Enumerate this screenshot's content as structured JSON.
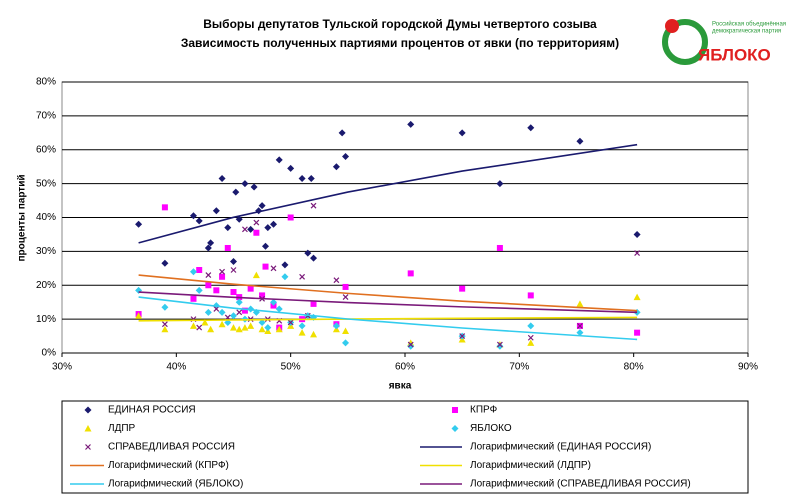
{
  "logo": {
    "name": "ЯБЛОКО",
    "tagline": [
      "Российская объединённая",
      "демократическая партия"
    ]
  },
  "chart_data": {
    "type": "scatter",
    "title": [
      "Выборы депутатов Тульской городской Думы четвертого созыва",
      "Зависимость полученных партиями процентов от явки (по территориям)"
    ],
    "xlabel": "явка",
    "ylabel": "проценты партий",
    "xlim": [
      30,
      90
    ],
    "xticks": [
      {
        "value": 30,
        "label": "30%"
      },
      {
        "value": 40,
        "label": "40%"
      },
      {
        "value": 50,
        "label": "50%"
      },
      {
        "value": 60,
        "label": "60%"
      },
      {
        "value": 70,
        "label": "70%"
      },
      {
        "value": 80,
        "label": "80%"
      },
      {
        "value": 90,
        "label": "90%"
      }
    ],
    "ylim": [
      0,
      80
    ],
    "yticks": [
      {
        "value": 0,
        "label": "0%"
      },
      {
        "value": 10,
        "label": "10%"
      },
      {
        "value": 20,
        "label": "20%"
      },
      {
        "value": 30,
        "label": "30%"
      },
      {
        "value": 40,
        "label": "40%"
      },
      {
        "value": 50,
        "label": "50%"
      },
      {
        "value": 60,
        "label": "60%"
      },
      {
        "value": 70,
        "label": "70%"
      },
      {
        "value": 80,
        "label": "80%"
      }
    ],
    "grid": true,
    "legend": "bottom",
    "series": [
      {
        "name": "ЕДИНАЯ РОССИЯ",
        "color": "#1a1a6e",
        "marker": "diamond",
        "x": [
          36.7,
          39,
          41.5,
          42,
          42.8,
          43,
          43.5,
          44,
          44.5,
          45,
          45.2,
          45.5,
          46,
          46.5,
          46.8,
          47.2,
          47.5,
          47.8,
          48,
          48.5,
          49,
          49.5,
          50,
          51,
          51.5,
          51.8,
          52,
          54,
          54.5,
          54.8,
          60.5,
          65,
          68.3,
          71,
          75.3,
          80.3
        ],
        "values": [
          38,
          26.5,
          40.5,
          39,
          31,
          32.5,
          42,
          51.5,
          37,
          27,
          47.5,
          39.5,
          50,
          36.5,
          49,
          42,
          43.5,
          31.5,
          37,
          38,
          57,
          26,
          54.5,
          51.5,
          29.5,
          51.5,
          28,
          55,
          65,
          58,
          67.5,
          65,
          50,
          66.5,
          62.5,
          35
        ]
      },
      {
        "name": "КПРФ",
        "color": "#ff00ff",
        "marker": "square",
        "x": [
          36.7,
          39,
          41.5,
          42,
          42.8,
          43.5,
          44,
          44.5,
          45,
          45.5,
          46,
          46.5,
          47,
          47.5,
          47.8,
          48.5,
          49,
          50,
          51,
          52,
          54,
          54.8,
          60.5,
          65,
          68.3,
          71,
          75.3,
          80.3
        ],
        "values": [
          11.5,
          43,
          16,
          24.5,
          20,
          18.5,
          22.5,
          31,
          18,
          16.5,
          12.5,
          19,
          35.5,
          17,
          25.5,
          14,
          7.5,
          40,
          10,
          14.5,
          8.5,
          19.5,
          23.5,
          19,
          31,
          17,
          8,
          6
        ]
      },
      {
        "name": "ЛДПР",
        "color": "#f0e000",
        "marker": "triangle",
        "x": [
          36.7,
          39,
          41.5,
          42.5,
          43,
          44,
          45,
          45.5,
          46,
          46.5,
          47,
          47.5,
          48,
          49,
          50,
          51,
          52,
          54,
          54.8,
          60.5,
          65,
          68.3,
          71,
          75.3,
          80.3
        ],
        "values": [
          11,
          7,
          8,
          9,
          7,
          8.5,
          7.5,
          7,
          7.5,
          8,
          23,
          7,
          6.5,
          7,
          8,
          6,
          5.5,
          7,
          6.5,
          3,
          4,
          2.5,
          3,
          14.5,
          16.5
        ]
      },
      {
        "name": "ЯБЛОКО",
        "color": "#33ccee",
        "marker": "diamond",
        "x": [
          36.7,
          39,
          41.5,
          42,
          42.8,
          43.5,
          44,
          44.5,
          45,
          45.5,
          46,
          46.5,
          47,
          47.5,
          48,
          48.5,
          49,
          49.5,
          50,
          51,
          51.5,
          52,
          54,
          54.8,
          60.5,
          65,
          68.3,
          71,
          75.3,
          80.3
        ],
        "values": [
          18.5,
          13.5,
          24,
          18.5,
          12,
          14,
          12,
          9,
          11,
          15,
          10,
          13,
          12,
          9,
          7.5,
          15,
          13,
          22.5,
          9,
          8,
          11,
          10.5,
          8,
          3,
          2,
          5,
          2,
          8,
          6,
          12
        ]
      },
      {
        "name": "СПРАВЕДЛИВАЯ РОССИЯ",
        "color": "#7a1a7a",
        "marker": "x",
        "x": [
          39,
          41.5,
          42,
          42.8,
          43.5,
          44,
          44.5,
          45,
          45.5,
          46,
          46.5,
          47,
          47.5,
          48,
          48.5,
          49,
          50,
          51,
          51.5,
          52,
          54,
          54.8,
          60.5,
          65,
          68.3,
          71,
          75.3,
          80.3
        ],
        "values": [
          8.5,
          10,
          7.5,
          23,
          13,
          24,
          10.5,
          24.5,
          12,
          36.5,
          10,
          38.5,
          16,
          10,
          25,
          9.5,
          9,
          22.5,
          11,
          43.5,
          21.5,
          16.5,
          2.5,
          5,
          2.5,
          4.5,
          8,
          29.5
        ]
      },
      {
        "name": "Логарифмический (ЕДИНАЯ РОССИЯ)",
        "color": "#1a1a6e",
        "marker": "line",
        "x": [
          36.7,
          45,
          55,
          65,
          80.3
        ],
        "values": [
          32.5,
          40.05,
          47.5,
          53.7,
          61.5
        ]
      },
      {
        "name": "Логарифмический (КПРФ)",
        "color": "#e07020",
        "marker": "line",
        "x": [
          36.7,
          45,
          55,
          65,
          80.3
        ],
        "values": [
          23,
          20.3,
          17.6,
          15.3,
          12.5
        ]
      },
      {
        "name": "Логарифмический (ЛДПР)",
        "color": "#f0e000",
        "marker": "line",
        "x": [
          36.7,
          45,
          55,
          65,
          80.3
        ],
        "values": [
          9.5,
          9.76,
          10.02,
          10.23,
          10.5
        ]
      },
      {
        "name": "Логарифмический (ЯБЛОКО)",
        "color": "#33ccee",
        "marker": "line",
        "x": [
          36.7,
          45,
          55,
          65,
          80.3
        ],
        "values": [
          16.5,
          13.24,
          10.04,
          7.38,
          4
        ]
      },
      {
        "name": "Логарифмический (СПРАВЕДЛИВАЯ РОССИЯ)",
        "color": "#7a1a7a",
        "marker": "line",
        "x": [
          36.7,
          45,
          55,
          65,
          80.3
        ],
        "values": [
          18,
          16.44,
          14.9,
          13.62,
          12
        ]
      }
    ]
  }
}
